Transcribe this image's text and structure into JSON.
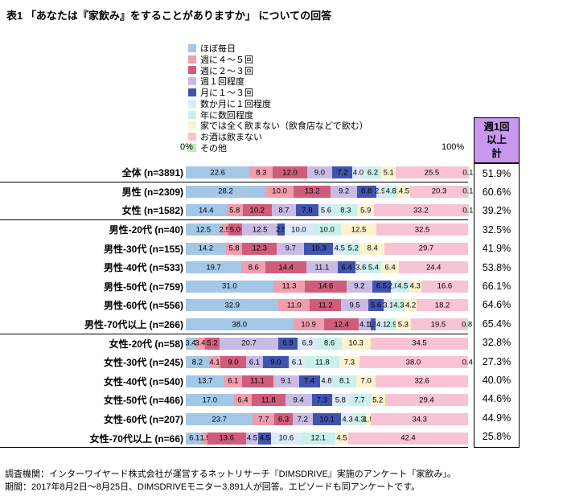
{
  "title": "表1 「あなたは『家飲み』をすることがありますか」 についての回答",
  "chart_data": {
    "type": "bar",
    "stacked": true,
    "orientation": "horizontal",
    "x_axis": {
      "min_label": "0%",
      "max_label": "100%",
      "range": [
        0,
        100
      ],
      "grid": false
    },
    "total_column": {
      "header": "週1回\n以上\n計",
      "header_bg": "#C897EE"
    },
    "legend_position": "top",
    "legend": [
      {
        "label": "ほぼ毎日",
        "color": "#A3C7E7"
      },
      {
        "label": "週に４～５回",
        "color": "#F09EAD"
      },
      {
        "label": "週に２～３回",
        "color": "#D05C7C"
      },
      {
        "label": "週１回程度",
        "color": "#C9BCE4"
      },
      {
        "label": "月に１～３回",
        "color": "#4053AD"
      },
      {
        "label": "数か月に１回程度",
        "color": "#DCE9F7"
      },
      {
        "label": "年に数回程度",
        "color": "#C9F0EA"
      },
      {
        "label": "家では全く飲まない（飲食店などで飲む）",
        "color": "#FCF2CF"
      },
      {
        "label": "お酒は飲まない",
        "color": "#F8C3D2"
      },
      {
        "label": "その他",
        "color": "#C2E5BC"
      }
    ],
    "rows": [
      {
        "label": "全体 (n=3891)",
        "values": [
          22.6,
          8.3,
          12.0,
          9.0,
          7.2,
          4.0,
          6.2,
          5.1,
          25.5,
          0.1
        ],
        "total": "51.9%",
        "separator_above": false
      },
      {
        "label": "男性 (n=2309)",
        "values": [
          28.2,
          10.0,
          13.2,
          9.2,
          6.8,
          2.9,
          4.8,
          4.5,
          20.3,
          0.1
        ],
        "total": "60.6%",
        "separator_above": true
      },
      {
        "label": "女性 (n=1582)",
        "values": [
          14.4,
          5.8,
          10.2,
          8.7,
          7.8,
          5.6,
          8.3,
          5.9,
          33.2,
          0.1
        ],
        "total": "39.2%",
        "separator_above": false
      },
      {
        "label": "男性-20代 (n=40)",
        "values": [
          12.5,
          2.5,
          5.0,
          12.5,
          2.5,
          10.0,
          10.0,
          12.5,
          32.5,
          0
        ],
        "total": "32.5%",
        "separator_above": true
      },
      {
        "label": "男性-30代 (n=155)",
        "values": [
          14.2,
          5.8,
          12.3,
          9.7,
          10.3,
          4.5,
          5.2,
          8.4,
          29.7,
          0
        ],
        "total": "41.9%",
        "separator_above": false
      },
      {
        "label": "男性-40代 (n=533)",
        "values": [
          19.7,
          8.6,
          14.4,
          11.1,
          6.4,
          3.6,
          5.4,
          6.4,
          24.4,
          0
        ],
        "total": "53.8%",
        "separator_above": false
      },
      {
        "label": "男性-50代 (n=759)",
        "values": [
          31.0,
          11.3,
          14.6,
          9.2,
          6.5,
          2.0,
          4.5,
          4.3,
          16.6,
          0
        ],
        "total": "66.1%",
        "separator_above": false
      },
      {
        "label": "男性-60代 (n=556)",
        "values": [
          32.9,
          11.0,
          11.2,
          9.5,
          5.6,
          3.1,
          4.3,
          4.2,
          18.2,
          0
        ],
        "total": "64.6%",
        "separator_above": false
      },
      {
        "label": "男性-70代以上 (n=266)",
        "values": [
          38.0,
          10.9,
          12.4,
          4.1,
          1.9,
          4.1,
          2.9,
          5.3,
          19.5,
          0.8
        ],
        "total": "65.4%",
        "separator_above": false
      },
      {
        "label": "女性-20代 (n=58)",
        "values": [
          3.4,
          3.4,
          5.2,
          20.7,
          6.9,
          6.9,
          8.6,
          10.3,
          34.5,
          0
        ],
        "total": "32.8%",
        "separator_above": true
      },
      {
        "label": "女性-30代 (n=245)",
        "values": [
          8.2,
          4.1,
          9.0,
          6.1,
          9.0,
          6.1,
          11.8,
          7.3,
          38.0,
          0.4
        ],
        "total": "27.3%",
        "separator_above": false
      },
      {
        "label": "女性-40代 (n=540)",
        "values": [
          13.7,
          6.1,
          11.1,
          9.1,
          7.4,
          4.8,
          8.1,
          7.0,
          32.6,
          0
        ],
        "total": "40.0%",
        "separator_above": false
      },
      {
        "label": "女性-50代 (n=466)",
        "values": [
          17.0,
          6.4,
          11.8,
          9.4,
          7.3,
          5.8,
          7.7,
          5.2,
          29.4,
          0
        ],
        "total": "44.6%",
        "separator_above": false
      },
      {
        "label": "女性-60代 (n=207)",
        "values": [
          23.7,
          7.7,
          6.3,
          7.2,
          10.1,
          4.3,
          4.3,
          1.9,
          34.3,
          0
        ],
        "total": "44.9%",
        "separator_above": false
      },
      {
        "label": "女性-70代以上 (n=66)",
        "values": [
          6.1,
          1.5,
          13.6,
          4.5,
          4.5,
          10.6,
          12.1,
          4.5,
          42.4,
          0
        ],
        "total": "25.8%",
        "separator_above": false
      }
    ]
  },
  "footer": {
    "line1": "調査機関：インターワイヤード株式会社が運営するネットリサーチ『DIMSDRIVE』実施のアンケート「家飲み」。",
    "line2": "期間：2017年8月2日～8月25日、DIMSDRIVEモニター3,891人が回答。エピソードも同アンケートです。"
  }
}
